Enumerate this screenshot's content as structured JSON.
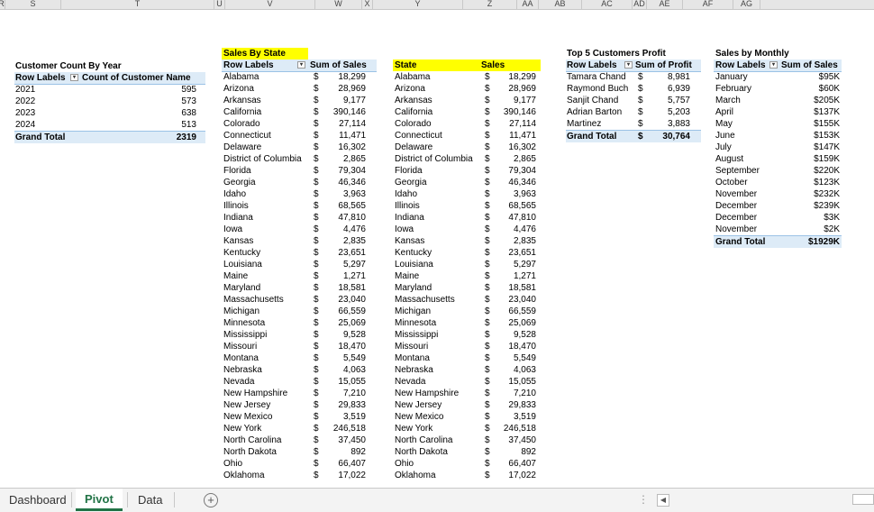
{
  "columns": [
    "R",
    "S",
    "T",
    "U",
    "V",
    "W",
    "X",
    "Y",
    "Z",
    "AA",
    "AB",
    "AC",
    "AD",
    "AE",
    "AF",
    "AG"
  ],
  "customer_count": {
    "title": "Customer Count By Year",
    "h1": "Row Labels",
    "h2": "Count of Customer Name",
    "rows": [
      [
        "2021",
        "595"
      ],
      [
        "2022",
        "573"
      ],
      [
        "2023",
        "638"
      ],
      [
        "2024",
        "513"
      ]
    ],
    "total_label": "Grand Total",
    "total_value": "2319"
  },
  "sales_by_state": {
    "title": "Sales By State",
    "h1": "Row Labels",
    "h2": "Sum of Sales",
    "currency": "$",
    "rows": [
      [
        "Alabama",
        "18,299"
      ],
      [
        "Arizona",
        "28,969"
      ],
      [
        "Arkansas",
        "9,177"
      ],
      [
        "California",
        "390,146"
      ],
      [
        "Colorado",
        "27,114"
      ],
      [
        "Connecticut",
        "11,471"
      ],
      [
        "Delaware",
        "16,302"
      ],
      [
        "District of Columbia",
        "2,865"
      ],
      [
        "Florida",
        "79,304"
      ],
      [
        "Georgia",
        "46,346"
      ],
      [
        "Idaho",
        "3,963"
      ],
      [
        "Illinois",
        "68,565"
      ],
      [
        "Indiana",
        "47,810"
      ],
      [
        "Iowa",
        "4,476"
      ],
      [
        "Kansas",
        "2,835"
      ],
      [
        "Kentucky",
        "23,651"
      ],
      [
        "Louisiana",
        "5,297"
      ],
      [
        "Maine",
        "1,271"
      ],
      [
        "Maryland",
        "18,581"
      ],
      [
        "Massachusetts",
        "23,040"
      ],
      [
        "Michigan",
        "66,559"
      ],
      [
        "Minnesota",
        "25,069"
      ],
      [
        "Mississippi",
        "9,528"
      ],
      [
        "Missouri",
        "18,470"
      ],
      [
        "Montana",
        "5,549"
      ],
      [
        "Nebraska",
        "4,063"
      ],
      [
        "Nevada",
        "15,055"
      ],
      [
        "New Hampshire",
        "7,210"
      ],
      [
        "New Jersey",
        "29,833"
      ],
      [
        "New Mexico",
        "3,519"
      ],
      [
        "New York",
        "246,518"
      ],
      [
        "North Carolina",
        "37,450"
      ],
      [
        "North Dakota",
        "892"
      ],
      [
        "Ohio",
        "66,407"
      ],
      [
        "Oklahoma",
        "17,022"
      ]
    ]
  },
  "state_sales": {
    "h1": "State",
    "h2": "Sales"
  },
  "top5": {
    "title": "Top 5 Customers Profit",
    "h1": "Row Labels",
    "h2": "Sum of Profit",
    "currency": "$",
    "rows": [
      [
        "Tamara Chand",
        "8,981"
      ],
      [
        "Raymond Buch",
        "6,939"
      ],
      [
        "Sanjit Chand",
        "5,757"
      ],
      [
        "Adrian Barton",
        "5,203"
      ],
      [
        "Martinez",
        "3,883"
      ]
    ],
    "total_label": "Grand Total",
    "total_value": "30,764"
  },
  "monthly": {
    "title": "Sales by Monthly",
    "h1": "Row Labels",
    "h2": "Sum of Sales",
    "rows": [
      [
        "January",
        "$95K"
      ],
      [
        "February",
        "$60K"
      ],
      [
        "March",
        "$205K"
      ],
      [
        "April",
        "$137K"
      ],
      [
        "May",
        "$155K"
      ],
      [
        "June",
        "$153K"
      ],
      [
        "July",
        "$147K"
      ],
      [
        "August",
        "$159K"
      ],
      [
        "September",
        "$220K"
      ],
      [
        "October",
        "$123K"
      ],
      [
        "November",
        "$232K"
      ],
      [
        "December",
        "$239K"
      ],
      [
        "December",
        "$3K"
      ],
      [
        "November",
        "$2K"
      ]
    ],
    "total_label": "Grand Total",
    "total_value": "$1929K"
  },
  "tabs": [
    "Dashboard",
    "Pivot",
    "Data"
  ],
  "active_tab": "Pivot",
  "icons": {
    "add_sheet": "plus-circle-icon",
    "filter": "filter-dropdown-icon",
    "scroll_left": "triangle-left-icon"
  }
}
